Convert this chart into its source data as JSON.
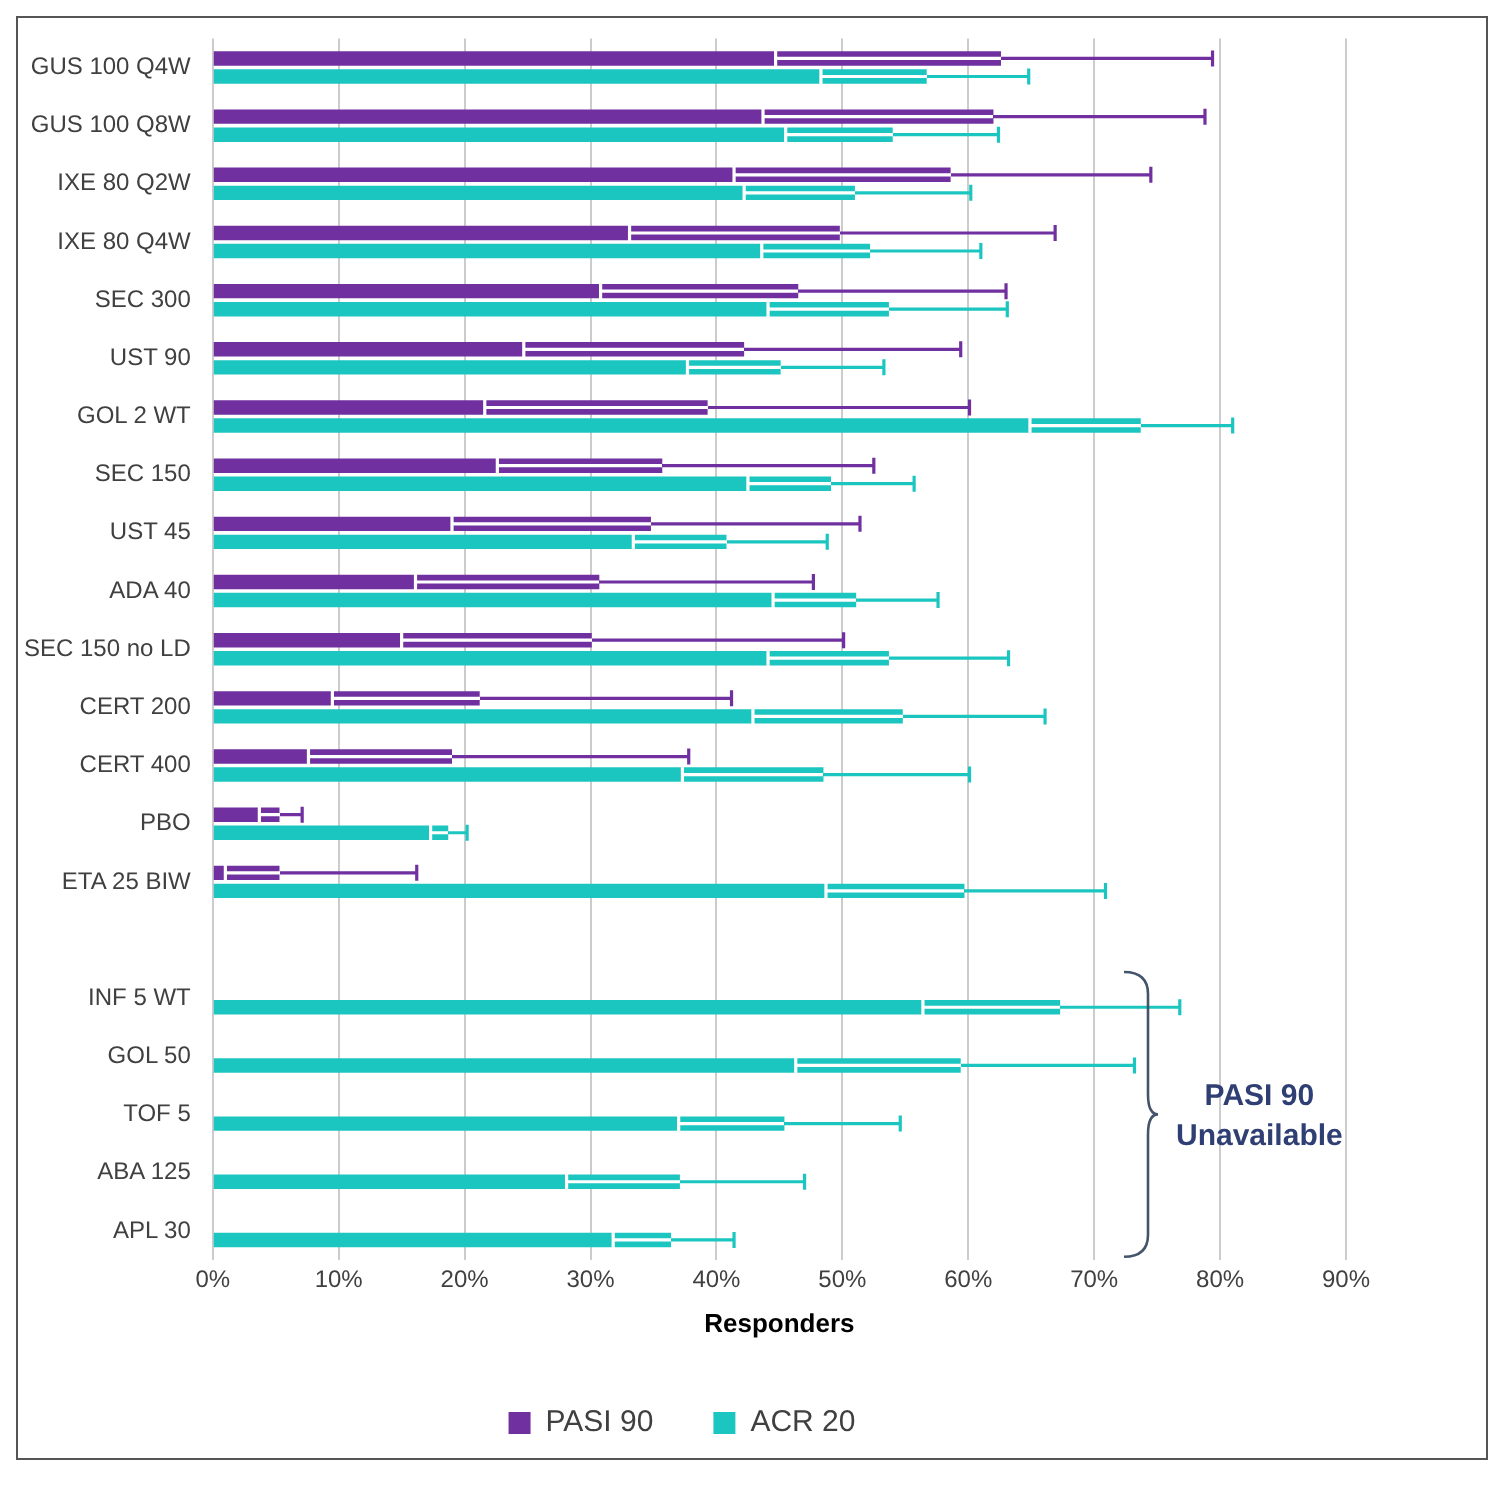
{
  "chart_data": {
    "type": "bar",
    "orientation": "horizontal",
    "xlabel": "Responders",
    "categories": [
      "GUS 100 Q4W",
      "GUS 100 Q8W",
      "IXE 80 Q2W",
      "IXE 80 Q4W",
      "SEC 300",
      "UST 90",
      "GOL 2 WT",
      "SEC 150",
      "UST 45",
      "ADA 40",
      "SEC 150 no LD",
      "CERT 200",
      "CERT 400",
      "PBO",
      "ETA 25 BIW",
      null,
      "INF 5 WT",
      "GOL 50",
      "TOF 5",
      "ABA 125",
      "APL 30"
    ],
    "series": [
      {
        "name": "PASI 90",
        "color": "#7030a0",
        "values": [
          62.6,
          62,
          58.6,
          49.8,
          46.5,
          42.2,
          39.3,
          35.7,
          34.8,
          30.7,
          30.1,
          21.2,
          19,
          5.3,
          5.3,
          null,
          null,
          null,
          null,
          null,
          null
        ],
        "errors": [
          [
            44.7,
            79.4
          ],
          [
            43.7,
            78.8
          ],
          [
            41.4,
            74.5
          ],
          [
            33.1,
            66.9
          ],
          [
            30.8,
            63
          ],
          [
            24.7,
            59.4
          ],
          [
            21.6,
            60.1
          ],
          [
            22.6,
            52.5
          ],
          [
            19,
            51.4
          ],
          [
            16.1,
            47.7
          ],
          [
            15,
            50.1
          ],
          [
            9.5,
            41.2
          ],
          [
            7.6,
            37.8
          ],
          [
            3.7,
            7.1
          ],
          [
            1,
            16.2
          ],
          null,
          null,
          null,
          null,
          null,
          null
        ]
      },
      {
        "name": "ACR 20",
        "color": "#1cc6c0",
        "values": [
          56.7,
          54,
          51,
          52.2,
          53.7,
          45.1,
          73.7,
          49.1,
          40.8,
          51.1,
          53.7,
          54.8,
          48.5,
          18.7,
          59.7,
          null,
          67.3,
          59.4,
          45.4,
          37.1,
          36.4
        ],
        "errors": [
          [
            48.3,
            64.8
          ],
          [
            45.5,
            62.4
          ],
          [
            42.2,
            60.2
          ],
          [
            43.6,
            61
          ],
          [
            44.1,
            63.1
          ],
          [
            37.7,
            53.3
          ],
          [
            64.9,
            81
          ],
          [
            42.5,
            55.7
          ],
          [
            33.4,
            48.8
          ],
          [
            44.5,
            57.6
          ],
          [
            44.1,
            63.2
          ],
          [
            42.9,
            66.1
          ],
          [
            37.3,
            60.1
          ],
          [
            17.3,
            20.2
          ],
          [
            48.7,
            70.9
          ],
          null,
          [
            56.4,
            76.8
          ],
          [
            46.3,
            73.2
          ],
          [
            37,
            54.6
          ],
          [
            28.1,
            47
          ],
          [
            31.8,
            41.4
          ]
        ]
      }
    ],
    "xlim": [
      0,
      90
    ],
    "xticks": [
      {
        "value": 0,
        "label": "0%"
      },
      {
        "value": 10,
        "label": "10%"
      },
      {
        "value": 20,
        "label": "20%"
      },
      {
        "value": 30,
        "label": "30%"
      },
      {
        "value": 40,
        "label": "40%"
      },
      {
        "value": 50,
        "label": "50%"
      },
      {
        "value": 60,
        "label": "60%"
      },
      {
        "value": 70,
        "label": "70%"
      },
      {
        "value": 80,
        "label": "80%"
      },
      {
        "value": 90,
        "label": "90%"
      }
    ],
    "grid": "x",
    "legend": "bottom",
    "annotations": [
      "PASI 90\nUnavailable"
    ]
  }
}
